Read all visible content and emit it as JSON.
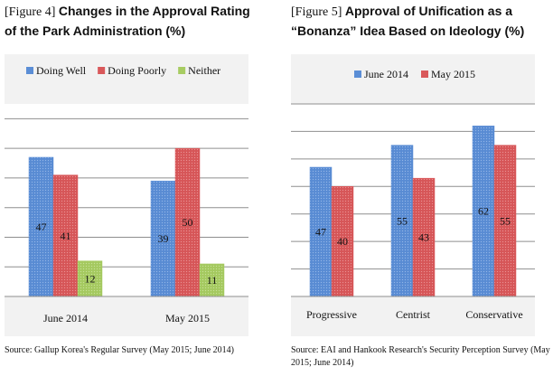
{
  "chart_data": [
    {
      "type": "bar",
      "figure_label": "[Figure 4]",
      "title": "Changes in the Approval Rating of the Park Administration (%)",
      "categories": [
        "June 2014",
        "May 2015"
      ],
      "series": [
        {
          "name": "Doing Well",
          "values": [
            47,
            39
          ],
          "color": "#5b8ed6"
        },
        {
          "name": "Doing Poorly",
          "values": [
            41,
            50
          ],
          "color": "#d9585a"
        },
        {
          "name": "Neither",
          "values": [
            12,
            11
          ],
          "color": "#a7cc62"
        }
      ],
      "ylim": [
        0,
        65
      ],
      "grid": true,
      "legend": "top",
      "source": "Source: Gallup Korea's Regular Survey (May 2015; June 2014)"
    },
    {
      "type": "bar",
      "figure_label": "[Figure 5]",
      "title": "Approval of Unification as a “Bonanza” Idea Based on Ideology (%)",
      "categories": [
        "Progressive",
        "Centrist",
        "Conservative"
      ],
      "series": [
        {
          "name": "June 2014",
          "values": [
            47,
            55,
            62
          ],
          "color": "#5b8ed6"
        },
        {
          "name": "May 2015",
          "values": [
            40,
            43,
            55
          ],
          "color": "#d9585a"
        }
      ],
      "ylim": [
        0,
        70
      ],
      "grid": true,
      "legend": "top",
      "source": "Source: EAI and Hankook Research's Security Perception Survey (May 2015; June 2014)"
    }
  ]
}
